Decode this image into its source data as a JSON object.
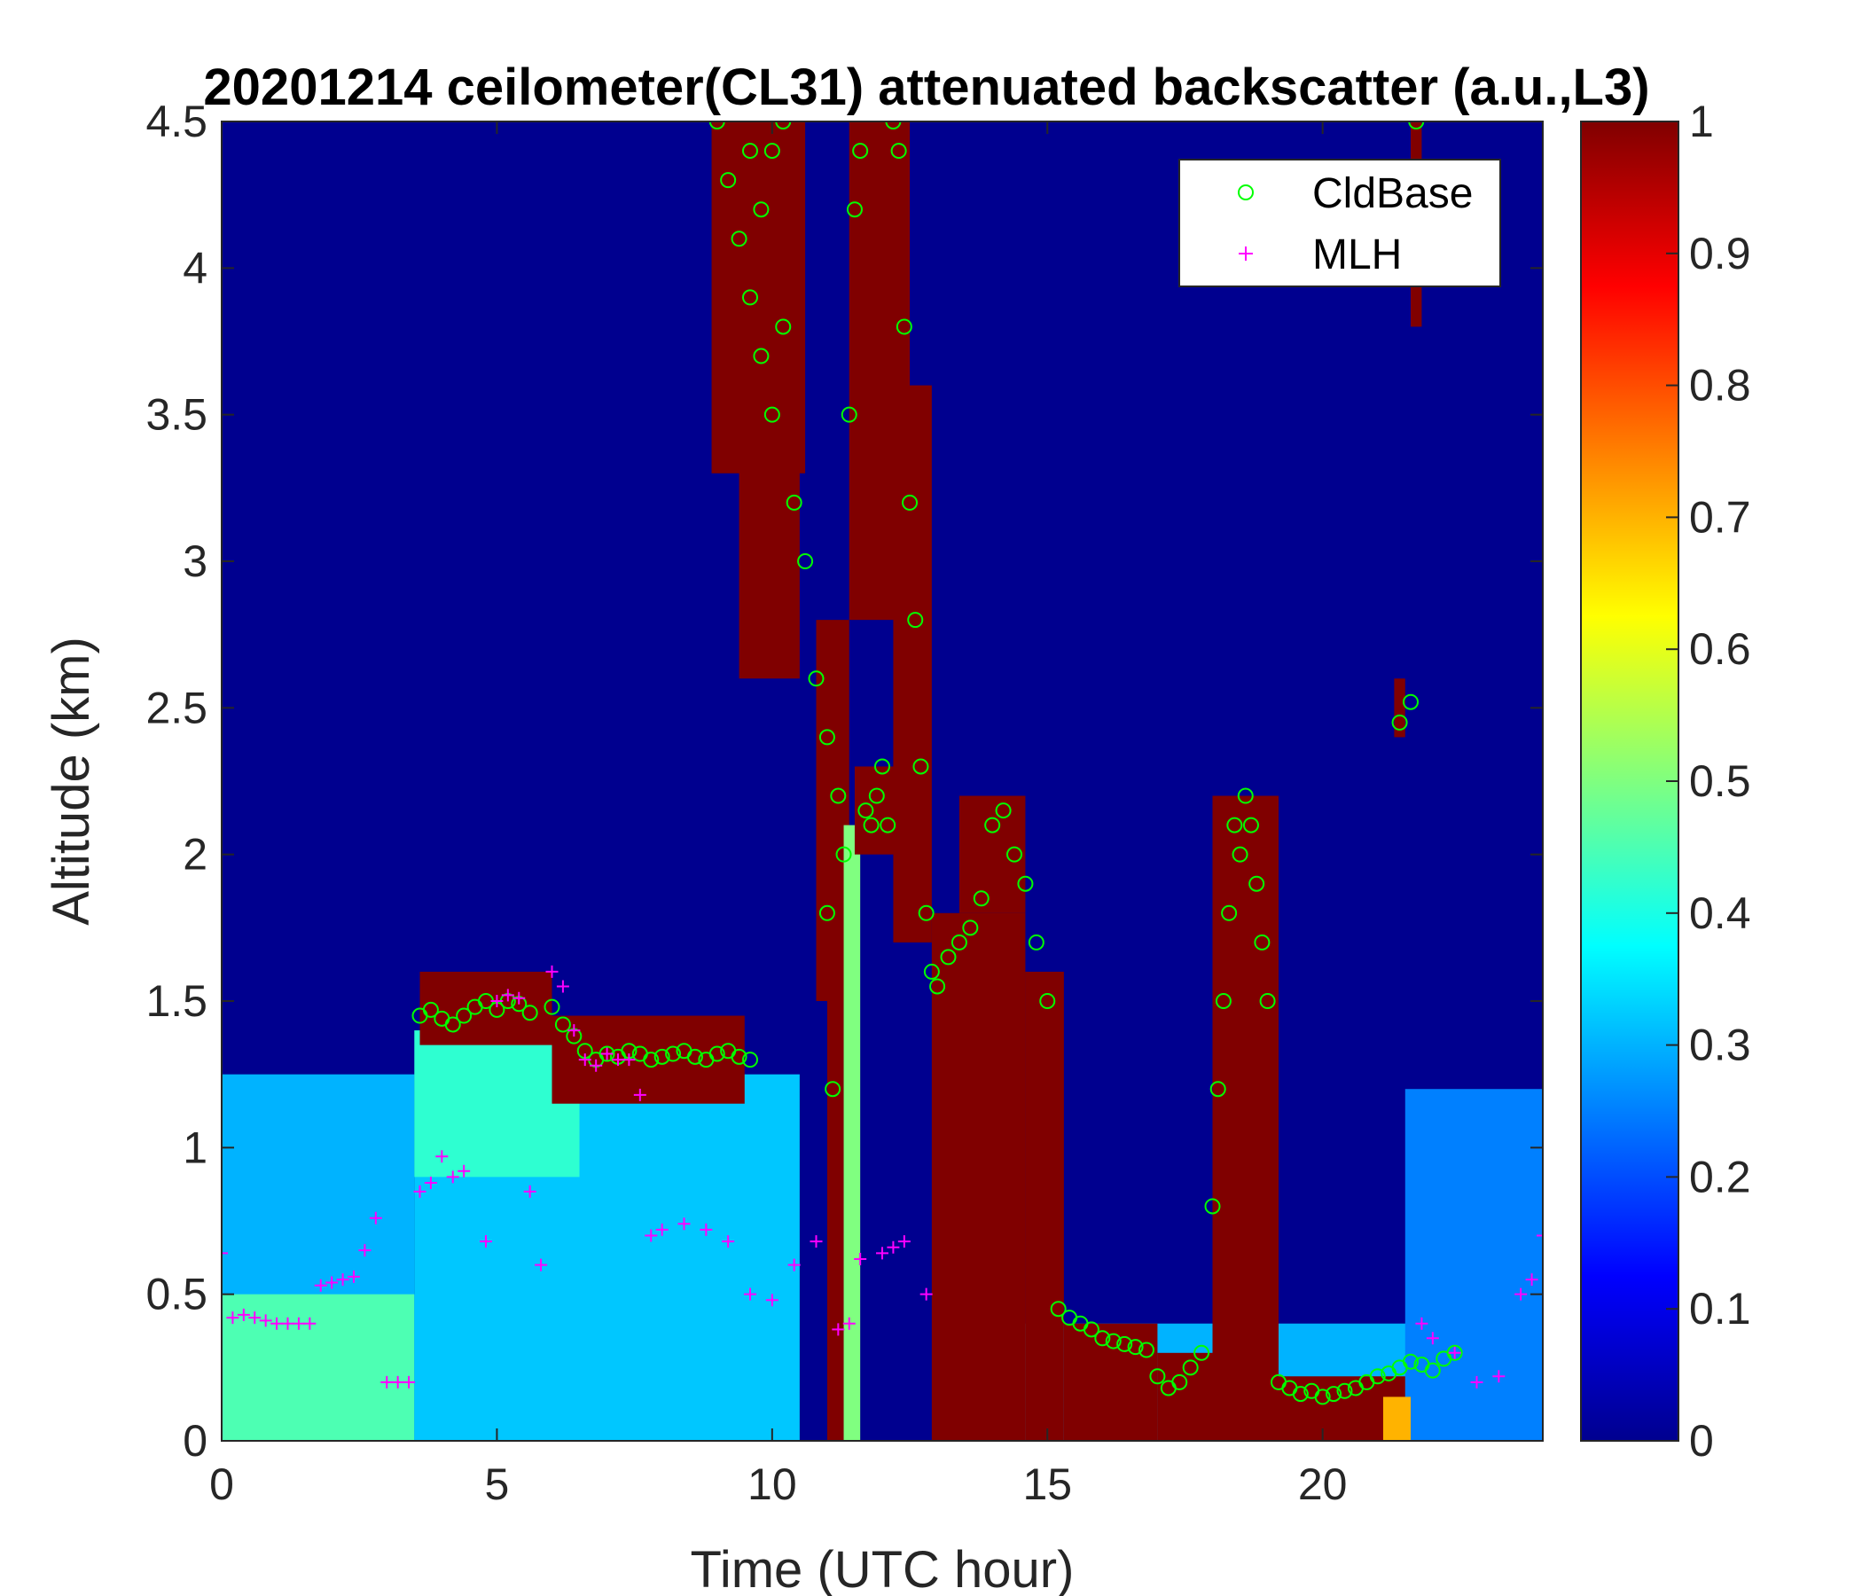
{
  "chart_data": {
    "type": "heatmap",
    "title": "20201214 ceilometer(CL31) attenuated backscatter (a.u.,L3)",
    "xlabel": "Time (UTC hour)",
    "ylabel": "Altitude (km)",
    "xlim": [
      0,
      24
    ],
    "ylim": [
      0,
      4.5
    ],
    "xticks": [
      "0",
      "5",
      "10",
      "15",
      "20"
    ],
    "xtick_values": [
      0,
      5,
      10,
      15,
      20
    ],
    "yticks": [
      "0",
      "0.5",
      "1",
      "1.5",
      "2",
      "2.5",
      "3",
      "3.5",
      "4",
      "4.5"
    ],
    "ytick_values": [
      0,
      0.5,
      1,
      1.5,
      2,
      2.5,
      3,
      3.5,
      4,
      4.5
    ],
    "colorbar": {
      "colormap": "jet",
      "range": [
        0,
        1
      ],
      "ticks": [
        "0",
        "0.1",
        "0.2",
        "0.3",
        "0.4",
        "0.5",
        "0.6",
        "0.7",
        "0.8",
        "0.9",
        "1"
      ],
      "tick_values": [
        0,
        0.1,
        0.2,
        0.3,
        0.4,
        0.5,
        0.6,
        0.7,
        0.8,
        0.9,
        1
      ]
    },
    "legend": {
      "placement": "top-right",
      "entries": [
        {
          "name": "CldBase",
          "marker": "circle",
          "color": "#00ff00"
        },
        {
          "name": "MLH",
          "marker": "plus",
          "color": "#ff00ff"
        }
      ]
    },
    "background_value": 0.02,
    "backscatter_regions": [
      {
        "t0": 0,
        "t1": 3.5,
        "z0": 0,
        "z1": 1.25,
        "value": 0.3
      },
      {
        "t0": 0,
        "t1": 3.5,
        "z0": 0,
        "z1": 0.5,
        "value": 0.45
      },
      {
        "t0": 3.5,
        "t1": 10.5,
        "z0": 0,
        "z1": 1.25,
        "value": 0.32
      },
      {
        "t0": 3.5,
        "t1": 6.5,
        "z0": 0.9,
        "z1": 1.4,
        "value": 0.42
      },
      {
        "t0": 13,
        "t1": 24,
        "z0": 0,
        "z1": 0.4,
        "value": 0.3
      },
      {
        "t0": 21.5,
        "t1": 24,
        "z0": 0,
        "z1": 1.2,
        "value": 0.25
      },
      {
        "t0": 3.6,
        "t1": 6.0,
        "z0": 1.35,
        "z1": 1.6,
        "value": 1.0
      },
      {
        "t0": 6.0,
        "t1": 9.5,
        "z0": 1.15,
        "z1": 1.45,
        "value": 1.0
      },
      {
        "t0": 8.9,
        "t1": 10.6,
        "z0": 3.3,
        "z1": 4.5,
        "value": 1.0
      },
      {
        "t0": 9.4,
        "t1": 10.5,
        "z0": 2.6,
        "z1": 3.4,
        "value": 1.0
      },
      {
        "t0": 10.8,
        "t1": 11.4,
        "z0": 1.5,
        "z1": 2.8,
        "value": 1.0
      },
      {
        "t0": 11.0,
        "t1": 11.3,
        "z0": 0,
        "z1": 1.5,
        "value": 1.0
      },
      {
        "t0": 11.3,
        "t1": 11.6,
        "z0": 0,
        "z1": 2.1,
        "value": 0.5
      },
      {
        "t0": 11.4,
        "t1": 12.5,
        "z0": 2.8,
        "z1": 4.5,
        "value": 1.0
      },
      {
        "t0": 11.5,
        "t1": 12.6,
        "z0": 2.0,
        "z1": 2.3,
        "value": 1.0
      },
      {
        "t0": 12.2,
        "t1": 12.9,
        "z0": 1.7,
        "z1": 3.6,
        "value": 1.0
      },
      {
        "t0": 12.9,
        "t1": 14.6,
        "z0": 0,
        "z1": 1.8,
        "value": 1.0
      },
      {
        "t0": 13.4,
        "t1": 14.6,
        "z0": 1.8,
        "z1": 2.2,
        "value": 1.0
      },
      {
        "t0": 14.6,
        "t1": 15.3,
        "z0": 0,
        "z1": 1.6,
        "value": 1.0
      },
      {
        "t0": 15.3,
        "t1": 17.0,
        "z0": 0,
        "z1": 0.4,
        "value": 1.0
      },
      {
        "t0": 17.0,
        "t1": 18.0,
        "z0": 0,
        "z1": 0.3,
        "value": 1.0
      },
      {
        "t0": 18.0,
        "t1": 19.2,
        "z0": 0,
        "z1": 2.2,
        "value": 1.0
      },
      {
        "t0": 19.2,
        "t1": 21.5,
        "z0": 0,
        "z1": 0.22,
        "value": 1.0
      },
      {
        "t0": 21.3,
        "t1": 21.5,
        "z0": 2.4,
        "z1": 2.6,
        "value": 1.0
      },
      {
        "t0": 21.6,
        "t1": 21.8,
        "z0": 3.8,
        "z1": 4.5,
        "value": 1.0
      },
      {
        "t0": 21.1,
        "t1": 21.6,
        "z0": 0,
        "z1": 0.15,
        "value": 0.7
      }
    ],
    "cldbase": {
      "x": [
        3.6,
        3.8,
        4.0,
        4.2,
        4.4,
        4.6,
        4.8,
        5.0,
        5.2,
        5.4,
        5.6,
        6.0,
        6.2,
        6.4,
        6.6,
        6.8,
        7.0,
        7.2,
        7.4,
        7.6,
        7.8,
        8.0,
        8.2,
        8.4,
        8.6,
        8.8,
        9.0,
        9.2,
        9.4,
        9.6,
        9.0,
        9.2,
        9.4,
        9.6,
        9.8,
        10.0,
        10.2,
        9.6,
        9.8,
        10.0,
        10.2,
        10.4,
        10.6,
        10.8,
        11.0,
        11.0,
        11.1,
        11.2,
        11.3,
        11.4,
        11.5,
        11.6,
        11.7,
        11.8,
        11.9,
        12.0,
        12.1,
        12.2,
        12.3,
        12.4,
        12.5,
        12.6,
        12.7,
        12.8,
        12.9,
        13.0,
        13.2,
        13.4,
        13.6,
        13.8,
        14.0,
        14.2,
        14.4,
        14.6,
        14.8,
        15.0,
        15.2,
        15.4,
        15.6,
        15.8,
        16.0,
        16.2,
        16.4,
        16.6,
        16.8,
        17.0,
        17.2,
        17.4,
        17.6,
        17.8,
        18.0,
        18.1,
        18.2,
        18.3,
        18.4,
        18.5,
        18.6,
        18.7,
        18.8,
        18.9,
        19.0,
        19.2,
        19.4,
        19.6,
        19.8,
        20.0,
        20.2,
        20.4,
        20.6,
        20.8,
        21.0,
        21.2,
        21.4,
        21.6,
        21.8,
        22.0,
        22.2,
        22.4,
        21.4,
        21.6,
        21.7
      ],
      "y": [
        1.45,
        1.47,
        1.44,
        1.42,
        1.45,
        1.48,
        1.5,
        1.47,
        1.5,
        1.49,
        1.46,
        1.48,
        1.42,
        1.38,
        1.33,
        1.3,
        1.32,
        1.31,
        1.33,
        1.32,
        1.3,
        1.31,
        1.32,
        1.33,
        1.31,
        1.3,
        1.32,
        1.33,
        1.31,
        1.3,
        4.5,
        4.3,
        4.1,
        4.4,
        4.2,
        4.4,
        4.5,
        3.9,
        3.7,
        3.5,
        3.8,
        3.2,
        3.0,
        2.6,
        2.4,
        1.8,
        1.2,
        2.2,
        2.0,
        3.5,
        4.2,
        4.4,
        2.15,
        2.1,
        2.2,
        2.3,
        2.1,
        4.5,
        4.4,
        3.8,
        3.2,
        2.8,
        2.3,
        1.8,
        1.6,
        1.55,
        1.65,
        1.7,
        1.75,
        1.85,
        2.1,
        2.15,
        2.0,
        1.9,
        1.7,
        1.5,
        0.45,
        0.42,
        0.4,
        0.38,
        0.35,
        0.34,
        0.33,
        0.32,
        0.31,
        0.22,
        0.18,
        0.2,
        0.25,
        0.3,
        0.8,
        1.2,
        1.5,
        1.8,
        2.1,
        2.0,
        2.2,
        2.1,
        1.9,
        1.7,
        1.5,
        0.2,
        0.18,
        0.16,
        0.17,
        0.15,
        0.16,
        0.17,
        0.18,
        0.2,
        0.22,
        0.23,
        0.25,
        0.27,
        0.26,
        0.24,
        0.28,
        0.3,
        2.45,
        2.52,
        4.5
      ]
    },
    "mlh": {
      "x": [
        0.0,
        0.2,
        0.4,
        0.6,
        0.8,
        1.0,
        1.2,
        1.4,
        1.6,
        1.8,
        2.0,
        2.2,
        2.4,
        2.6,
        2.8,
        3.0,
        3.2,
        3.4,
        3.6,
        3.8,
        4.0,
        4.2,
        4.4,
        4.8,
        5.0,
        5.2,
        5.4,
        5.6,
        5.8,
        6.0,
        6.2,
        6.4,
        6.6,
        6.8,
        7.0,
        7.2,
        7.4,
        7.6,
        7.8,
        8.0,
        8.4,
        8.8,
        9.2,
        9.6,
        10.0,
        10.4,
        10.8,
        11.2,
        11.4,
        11.6,
        12.0,
        12.2,
        12.4,
        12.8,
        21.8,
        22.0,
        22.4,
        22.8,
        23.2,
        23.6,
        23.8,
        24.0
      ],
      "y": [
        0.64,
        0.42,
        0.43,
        0.42,
        0.41,
        0.4,
        0.4,
        0.4,
        0.4,
        0.53,
        0.54,
        0.55,
        0.56,
        0.65,
        0.76,
        0.2,
        0.2,
        0.2,
        0.85,
        0.88,
        0.97,
        0.9,
        0.92,
        0.68,
        1.5,
        1.52,
        1.51,
        0.85,
        0.6,
        1.6,
        1.55,
        1.4,
        1.3,
        1.28,
        1.32,
        1.3,
        1.3,
        1.18,
        0.7,
        0.72,
        0.74,
        0.72,
        0.68,
        0.5,
        0.48,
        0.6,
        0.68,
        0.38,
        0.4,
        0.62,
        0.64,
        0.66,
        0.68,
        0.5,
        0.4,
        0.35,
        0.3,
        0.2,
        0.22,
        0.5,
        0.55,
        0.7
      ]
    }
  }
}
